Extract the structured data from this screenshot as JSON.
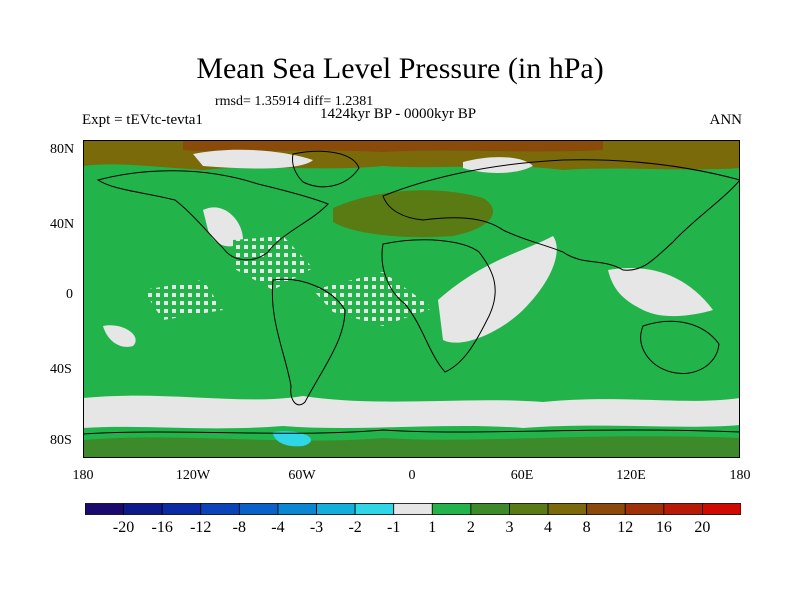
{
  "title": "Mean Sea Level Pressure (in hPa)",
  "stats": "rmsd= 1.35914 diff= 1.2381",
  "period": "1424kyr BP - 0000kyr BP",
  "experiment": "Expt = tEVtc-tevta1",
  "season": "ANN",
  "lat_labels": [
    "80N",
    "40N",
    "0",
    "40S",
    "80S"
  ],
  "lon_labels": [
    "180",
    "120W",
    "60W",
    "0",
    "60E",
    "120E",
    "180"
  ],
  "colorbar": {
    "labels": [
      "-20",
      "-16",
      "-12",
      "-8",
      "-4",
      "-3",
      "-2",
      "-1",
      "1",
      "2",
      "3",
      "4",
      "8",
      "12",
      "16",
      "20"
    ],
    "colors": [
      "#1a0a6e",
      "#0c1a8c",
      "#0a2aa6",
      "#0b44b8",
      "#0a62c8",
      "#0a86d2",
      "#14aedc",
      "#2fd6e6",
      "#e6e6e6",
      "#22b44a",
      "#3c8a2a",
      "#5a7a14",
      "#7a6a0a",
      "#8a4a0a",
      "#a03008",
      "#b81a08",
      "#d00a00"
    ]
  }
}
